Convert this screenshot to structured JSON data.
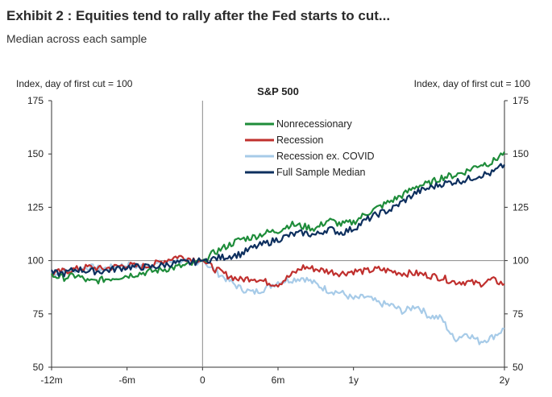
{
  "exhibit": {
    "title": "Exhibit 2 : Equities tend to rally after the Fed starts to cut...",
    "subtitle": "Median across each sample"
  },
  "chart_data": {
    "type": "line",
    "title": "S&P 500",
    "ylabel_left": "Index, day of first cut = 100",
    "ylabel_right": "Index, day of first cut = 100",
    "xlabel": "",
    "xlim": [
      -12,
      24
    ],
    "ylim": [
      50,
      175
    ],
    "y_ticks": [
      50,
      75,
      100,
      125,
      150,
      175
    ],
    "x_ticks": [
      {
        "value": -12,
        "label": "-12m"
      },
      {
        "value": -6,
        "label": "-6m"
      },
      {
        "value": 0,
        "label": "0"
      },
      {
        "value": 6,
        "label": "6m"
      },
      {
        "value": 12,
        "label": "1y"
      },
      {
        "value": 24,
        "label": "2y"
      }
    ],
    "reference_lines": {
      "x": 0,
      "y": 100
    },
    "legend_position": "top-center",
    "series": [
      {
        "name": "Nonrecessionary",
        "color": "#1e8c3a",
        "x": [
          -12,
          -11,
          -10,
          -9,
          -8,
          -7,
          -6,
          -5,
          -4,
          -3,
          -2,
          -1,
          0,
          1,
          2,
          3,
          4,
          5,
          6,
          7,
          8,
          9,
          10,
          11,
          12,
          13,
          14,
          15,
          16,
          17,
          18,
          19,
          20,
          21,
          22,
          23,
          24
        ],
        "values": [
          93,
          92,
          93,
          90,
          91,
          92,
          93,
          94,
          95,
          96,
          97,
          98,
          100,
          104,
          107,
          110,
          111,
          113,
          114,
          117,
          116,
          115,
          119,
          117,
          118,
          122,
          125,
          128,
          131,
          135,
          136,
          139,
          140,
          142,
          145,
          146,
          151
        ]
      },
      {
        "name": "Recession",
        "color": "#c0302e",
        "x": [
          -12,
          -11,
          -10,
          -9,
          -8,
          -7,
          -6,
          -5,
          -4,
          -3,
          -2,
          -1,
          0,
          1,
          2,
          3,
          4,
          5,
          6,
          7,
          8,
          9,
          10,
          11,
          12,
          13,
          14,
          15,
          16,
          17,
          18,
          19,
          20,
          21,
          22,
          23,
          24
        ],
        "values": [
          94,
          95,
          96,
          97,
          96,
          97,
          98,
          97,
          98,
          100,
          102,
          101,
          100,
          96,
          93,
          91,
          92,
          90,
          89,
          93,
          97,
          96,
          95,
          94,
          95,
          95,
          96,
          95,
          94,
          94,
          93,
          92,
          90,
          90,
          89,
          91,
          89
        ]
      },
      {
        "name": "Recession ex. COVID",
        "color": "#a7cbe8",
        "x": [
          -12,
          -11,
          -10,
          -9,
          -8,
          -7,
          -6,
          -5,
          -4,
          -3,
          -2,
          -1,
          0,
          1,
          2,
          3,
          4,
          5,
          6,
          7,
          8,
          9,
          10,
          11,
          12,
          13,
          14,
          15,
          16,
          17,
          18,
          19,
          20,
          21,
          22,
          23,
          24
        ],
        "values": [
          94,
          95,
          96,
          97,
          96,
          97,
          98,
          97,
          98,
          99,
          100,
          99,
          100,
          95,
          91,
          87,
          85,
          87,
          90,
          91,
          92,
          89,
          86,
          85,
          82,
          83,
          80,
          79,
          76,
          79,
          74,
          73,
          63,
          66,
          62,
          64,
          68
        ]
      },
      {
        "name": "Full Sample Median",
        "color": "#0d2f5e",
        "x": [
          -12,
          -11,
          -10,
          -9,
          -8,
          -7,
          -6,
          -5,
          -4,
          -3,
          -2,
          -1,
          0,
          1,
          2,
          3,
          4,
          5,
          6,
          7,
          8,
          9,
          10,
          11,
          12,
          13,
          14,
          15,
          16,
          17,
          18,
          19,
          20,
          21,
          22,
          23,
          24
        ],
        "values": [
          94,
          94,
          96,
          95,
          95,
          96,
          97,
          97,
          97,
          98,
          99,
          99,
          100,
          101,
          102,
          103,
          106,
          108,
          110,
          112,
          113,
          112,
          115,
          113,
          115,
          119,
          122,
          124,
          128,
          132,
          134,
          136,
          137,
          138,
          140,
          141,
          145
        ]
      }
    ]
  }
}
